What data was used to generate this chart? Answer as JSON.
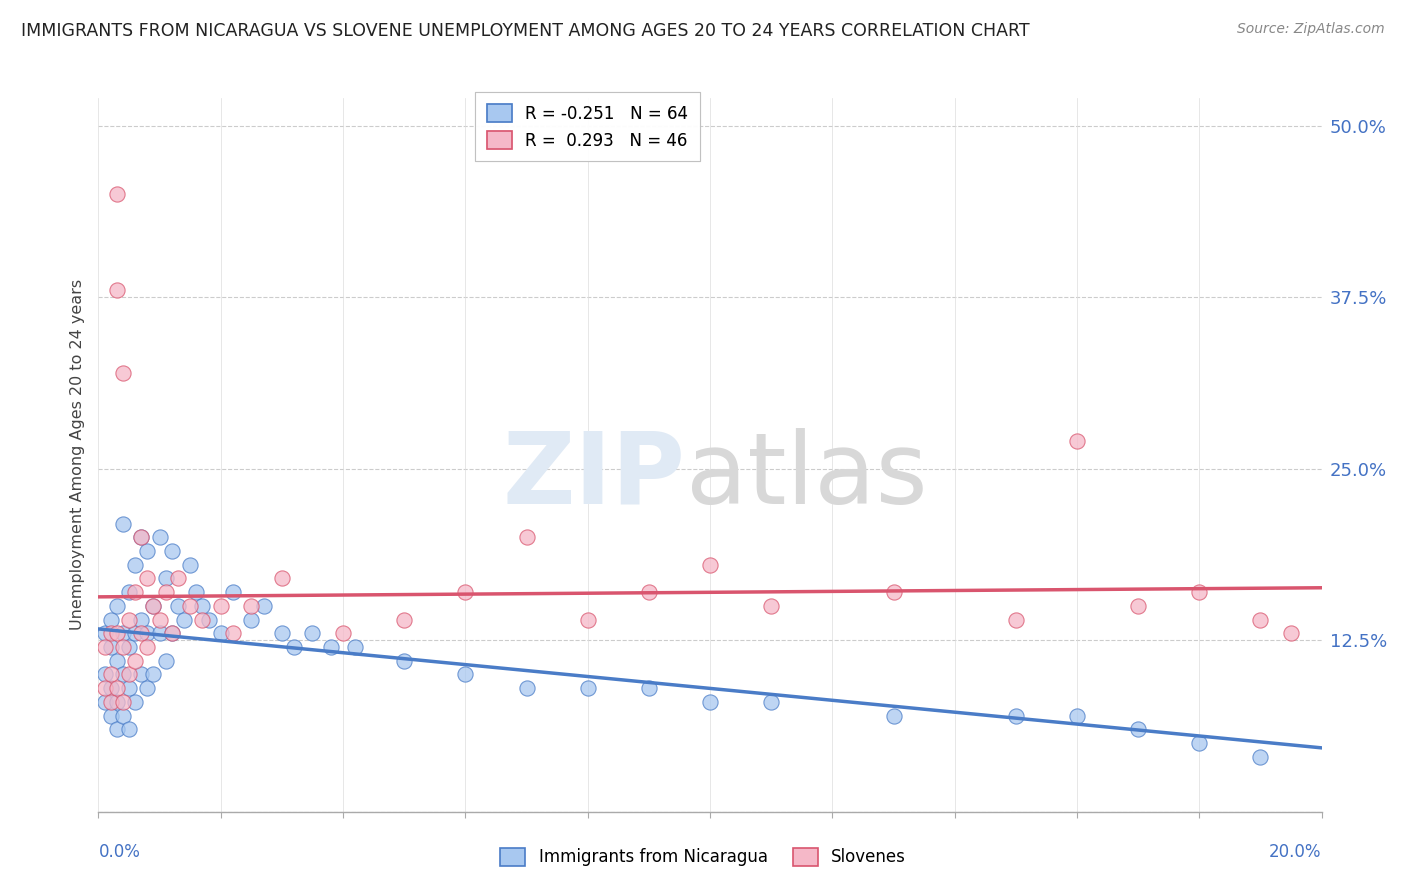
{
  "title": "IMMIGRANTS FROM NICARAGUA VS SLOVENE UNEMPLOYMENT AMONG AGES 20 TO 24 YEARS CORRELATION CHART",
  "source": "Source: ZipAtlas.com",
  "ylabel": "Unemployment Among Ages 20 to 24 years",
  "xlim": [
    0,
    0.2
  ],
  "ylim": [
    0,
    0.52
  ],
  "yticks_right": [
    0.0,
    0.125,
    0.25,
    0.375,
    0.5
  ],
  "ytick_labels_right": [
    "",
    "12.5%",
    "25.0%",
    "37.5%",
    "50.0%"
  ],
  "R_blue": -0.251,
  "N_blue": 64,
  "R_pink": 0.293,
  "N_pink": 46,
  "legend_label_blue": "Immigrants from Nicaragua",
  "legend_label_pink": "Slovenes",
  "color_blue": "#a8c8f0",
  "color_pink": "#f5b8c8",
  "line_color_blue": "#4a7cc7",
  "line_color_pink": "#d9556e",
  "blue_scatter_x": [
    0.001,
    0.001,
    0.001,
    0.002,
    0.002,
    0.002,
    0.002,
    0.003,
    0.003,
    0.003,
    0.003,
    0.004,
    0.004,
    0.004,
    0.004,
    0.005,
    0.005,
    0.005,
    0.005,
    0.006,
    0.006,
    0.006,
    0.007,
    0.007,
    0.007,
    0.008,
    0.008,
    0.008,
    0.009,
    0.009,
    0.01,
    0.01,
    0.011,
    0.011,
    0.012,
    0.012,
    0.013,
    0.014,
    0.015,
    0.016,
    0.017,
    0.018,
    0.02,
    0.022,
    0.025,
    0.027,
    0.03,
    0.032,
    0.035,
    0.038,
    0.042,
    0.05,
    0.06,
    0.07,
    0.08,
    0.09,
    0.1,
    0.11,
    0.13,
    0.15,
    0.16,
    0.17,
    0.18,
    0.19
  ],
  "blue_scatter_y": [
    0.13,
    0.1,
    0.08,
    0.14,
    0.12,
    0.09,
    0.07,
    0.15,
    0.11,
    0.08,
    0.06,
    0.21,
    0.13,
    0.1,
    0.07,
    0.16,
    0.12,
    0.09,
    0.06,
    0.18,
    0.13,
    0.08,
    0.2,
    0.14,
    0.1,
    0.19,
    0.13,
    0.09,
    0.15,
    0.1,
    0.2,
    0.13,
    0.17,
    0.11,
    0.19,
    0.13,
    0.15,
    0.14,
    0.18,
    0.16,
    0.15,
    0.14,
    0.13,
    0.16,
    0.14,
    0.15,
    0.13,
    0.12,
    0.13,
    0.12,
    0.12,
    0.11,
    0.1,
    0.09,
    0.09,
    0.09,
    0.08,
    0.08,
    0.07,
    0.07,
    0.07,
    0.06,
    0.05,
    0.04
  ],
  "pink_scatter_x": [
    0.001,
    0.001,
    0.002,
    0.002,
    0.002,
    0.003,
    0.003,
    0.003,
    0.003,
    0.004,
    0.004,
    0.004,
    0.005,
    0.005,
    0.006,
    0.006,
    0.007,
    0.007,
    0.008,
    0.008,
    0.009,
    0.01,
    0.011,
    0.012,
    0.013,
    0.015,
    0.017,
    0.02,
    0.022,
    0.025,
    0.03,
    0.04,
    0.05,
    0.06,
    0.07,
    0.08,
    0.09,
    0.1,
    0.11,
    0.13,
    0.15,
    0.16,
    0.17,
    0.18,
    0.19,
    0.195
  ],
  "pink_scatter_y": [
    0.12,
    0.09,
    0.13,
    0.1,
    0.08,
    0.45,
    0.38,
    0.13,
    0.09,
    0.32,
    0.12,
    0.08,
    0.14,
    0.1,
    0.16,
    0.11,
    0.2,
    0.13,
    0.17,
    0.12,
    0.15,
    0.14,
    0.16,
    0.13,
    0.17,
    0.15,
    0.14,
    0.15,
    0.13,
    0.15,
    0.17,
    0.13,
    0.14,
    0.16,
    0.2,
    0.14,
    0.16,
    0.18,
    0.15,
    0.16,
    0.14,
    0.27,
    0.15,
    0.16,
    0.14,
    0.13
  ]
}
